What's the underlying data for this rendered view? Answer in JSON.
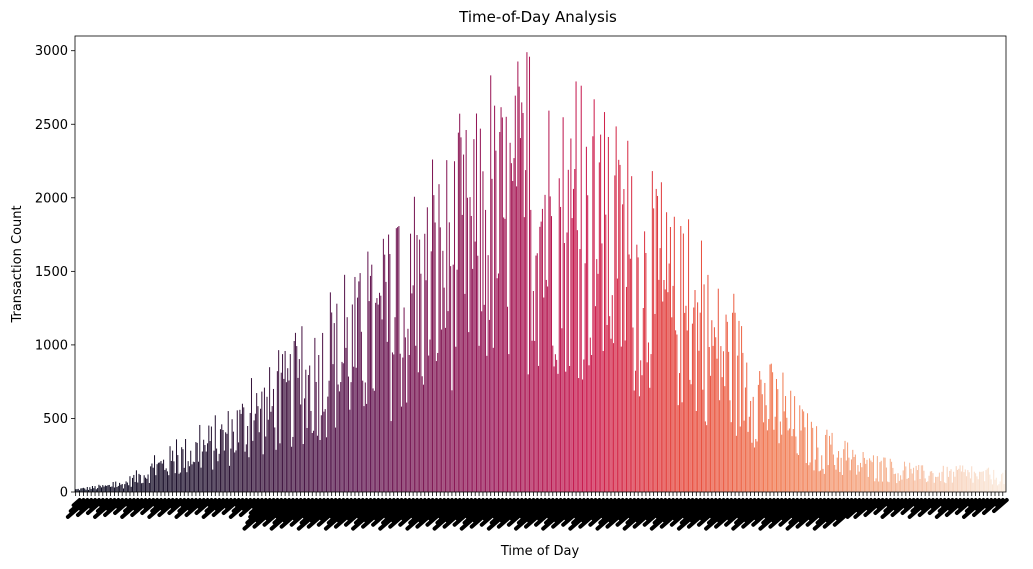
{
  "chart_data": {
    "type": "bar",
    "title": "Time-of-Day Analysis",
    "xlabel": "Time of Day",
    "ylabel": "Transaction Count",
    "ylim": [
      0,
      3100
    ],
    "yticks": [
      0,
      500,
      1000,
      1500,
      2000,
      2500,
      3000
    ],
    "palette": "rocket (dark purple to light peach, left to right)",
    "grid": false,
    "legend": "none",
    "x_tick_labels": "dense rotated labels (illegible)",
    "categories_count": 720,
    "profile_points": [
      {
        "x": 0.0,
        "y": 20
      },
      {
        "x": 0.05,
        "y": 60
      },
      {
        "x": 0.1,
        "y": 250
      },
      {
        "x": 0.15,
        "y": 400
      },
      {
        "x": 0.2,
        "y": 650
      },
      {
        "x": 0.25,
        "y": 900
      },
      {
        "x": 0.3,
        "y": 1200
      },
      {
        "x": 0.35,
        "y": 1400
      },
      {
        "x": 0.4,
        "y": 1900
      },
      {
        "x": 0.45,
        "y": 2200
      },
      {
        "x": 0.5,
        "y": 2300
      },
      {
        "x": 0.55,
        "y": 2100
      },
      {
        "x": 0.6,
        "y": 1800
      },
      {
        "x": 0.65,
        "y": 1500
      },
      {
        "x": 0.7,
        "y": 1100
      },
      {
        "x": 0.75,
        "y": 700
      },
      {
        "x": 0.8,
        "y": 350
      },
      {
        "x": 0.85,
        "y": 200
      },
      {
        "x": 0.9,
        "y": 150
      },
      {
        "x": 0.95,
        "y": 140
      },
      {
        "x": 1.0,
        "y": 120
      }
    ],
    "peak_value": 2990
  }
}
